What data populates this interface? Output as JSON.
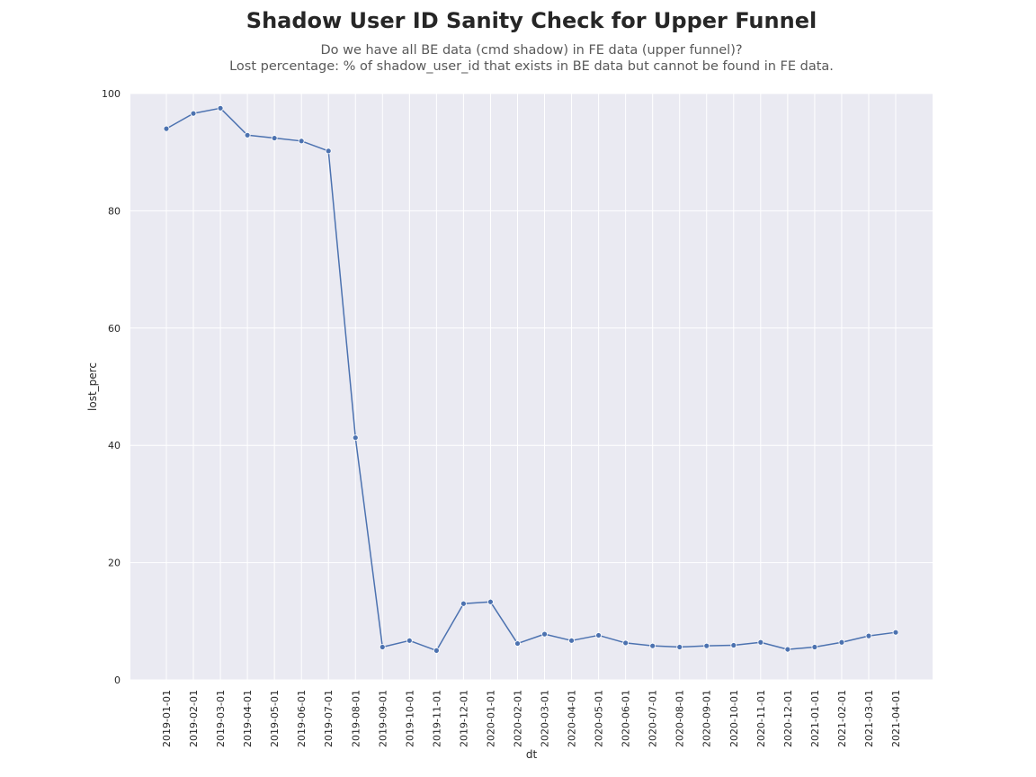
{
  "chart_data": {
    "type": "line",
    "title": "Shadow User ID Sanity Check for Upper Funnel",
    "subtitle_lines": [
      "Do we have all BE data (cmd shadow) in FE data (upper funnel)?",
      "Lost percentage: % of shadow_user_id that exists in BE data but cannot be found in FE data."
    ],
    "xlabel": "dt",
    "ylabel": "lost_perc",
    "ylim": [
      0,
      100
    ],
    "yticks": [
      0,
      20,
      40,
      60,
      80,
      100
    ],
    "grid": true,
    "marker": "circle",
    "colors": {
      "line": "#4c72b0",
      "background": "#eaeaf2",
      "grid": "#ffffff"
    },
    "x": [
      "2019-01-01",
      "2019-02-01",
      "2019-03-01",
      "2019-04-01",
      "2019-05-01",
      "2019-06-01",
      "2019-07-01",
      "2019-08-01",
      "2019-09-01",
      "2019-10-01",
      "2019-11-01",
      "2019-12-01",
      "2020-01-01",
      "2020-02-01",
      "2020-03-01",
      "2020-04-01",
      "2020-05-01",
      "2020-06-01",
      "2020-07-01",
      "2020-08-01",
      "2020-09-01",
      "2020-10-01",
      "2020-11-01",
      "2020-12-01",
      "2021-01-01",
      "2021-02-01",
      "2021-03-01",
      "2021-04-01"
    ],
    "values": [
      94.0,
      96.6,
      97.5,
      92.9,
      92.4,
      91.9,
      90.2,
      41.3,
      5.6,
      6.7,
      5.0,
      13.0,
      13.3,
      6.2,
      7.8,
      6.7,
      7.6,
      6.3,
      5.8,
      5.6,
      5.8,
      5.9,
      6.4,
      5.2,
      5.6,
      6.4,
      7.5,
      8.1
    ]
  }
}
